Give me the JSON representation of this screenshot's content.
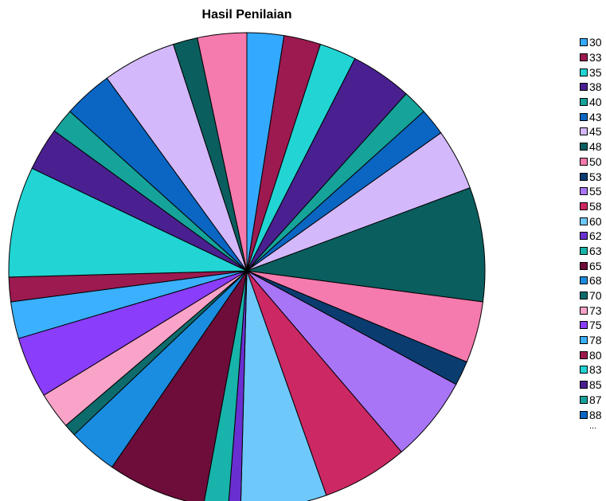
{
  "chart_data": {
    "type": "pie",
    "title": "Hasil Penilaian",
    "legend_position": "right",
    "legend_overflow": "...",
    "slices": [
      {
        "label": "30",
        "value": 3.0,
        "color": "#33aaff"
      },
      {
        "label": "33",
        "value": 3.0,
        "color": "#9c1a50"
      },
      {
        "label": "35",
        "value": 3.0,
        "color": "#22d4d4"
      },
      {
        "label": "38",
        "value": 5.0,
        "color": "#4a2090"
      },
      {
        "label": "40",
        "value": 2.0,
        "color": "#16a39a"
      },
      {
        "label": "43",
        "value": 2.2,
        "color": "#0a66c2"
      },
      {
        "label": "45",
        "value": 5.0,
        "color": "#d3b8fb"
      },
      {
        "label": "48",
        "value": 9.3,
        "color": "#0a5e5e"
      },
      {
        "label": "50",
        "value": 5.0,
        "color": "#f57aad"
      },
      {
        "label": "53",
        "value": 2.0,
        "color": "#0a3c70"
      },
      {
        "label": "55",
        "value": 7.0,
        "color": "#a875f7"
      },
      {
        "label": "58",
        "value": 7.0,
        "color": "#cc2864"
      },
      {
        "label": "60",
        "value": 7.0,
        "color": "#6fc8fa"
      },
      {
        "label": "62",
        "value": 1.0,
        "color": "#6a2fd0"
      },
      {
        "label": "63",
        "value": 2.0,
        "color": "#18b3aa"
      },
      {
        "label": "65",
        "value": 8.0,
        "color": "#6e0c3a"
      },
      {
        "label": "68",
        "value": 4.0,
        "color": "#1a8de0"
      },
      {
        "label": "70",
        "value": 1.0,
        "color": "#0e6b6b"
      },
      {
        "label": "73",
        "value": 3.0,
        "color": "#f9a3c8"
      },
      {
        "label": "75",
        "value": 5.0,
        "color": "#8a3dfa"
      },
      {
        "label": "78",
        "value": 3.0,
        "color": "#3ab0ff"
      },
      {
        "label": "80",
        "value": 2.0,
        "color": "#9c1a50"
      },
      {
        "label": "83",
        "value": 9.0,
        "color": "#22d4d4"
      },
      {
        "label": "85",
        "value": 3.5,
        "color": "#4a2090"
      },
      {
        "label": "87",
        "value": 2.0,
        "color": "#16a39a"
      },
      {
        "label": "88",
        "value": 4.0,
        "color": "#0a66c2"
      },
      {
        "label": "",
        "value": 6.0,
        "color": "#d3b8fb"
      },
      {
        "label": "",
        "value": 2.0,
        "color": "#0a5e5e"
      },
      {
        "label": "",
        "value": 4.0,
        "color": "#f57aad"
      }
    ]
  }
}
